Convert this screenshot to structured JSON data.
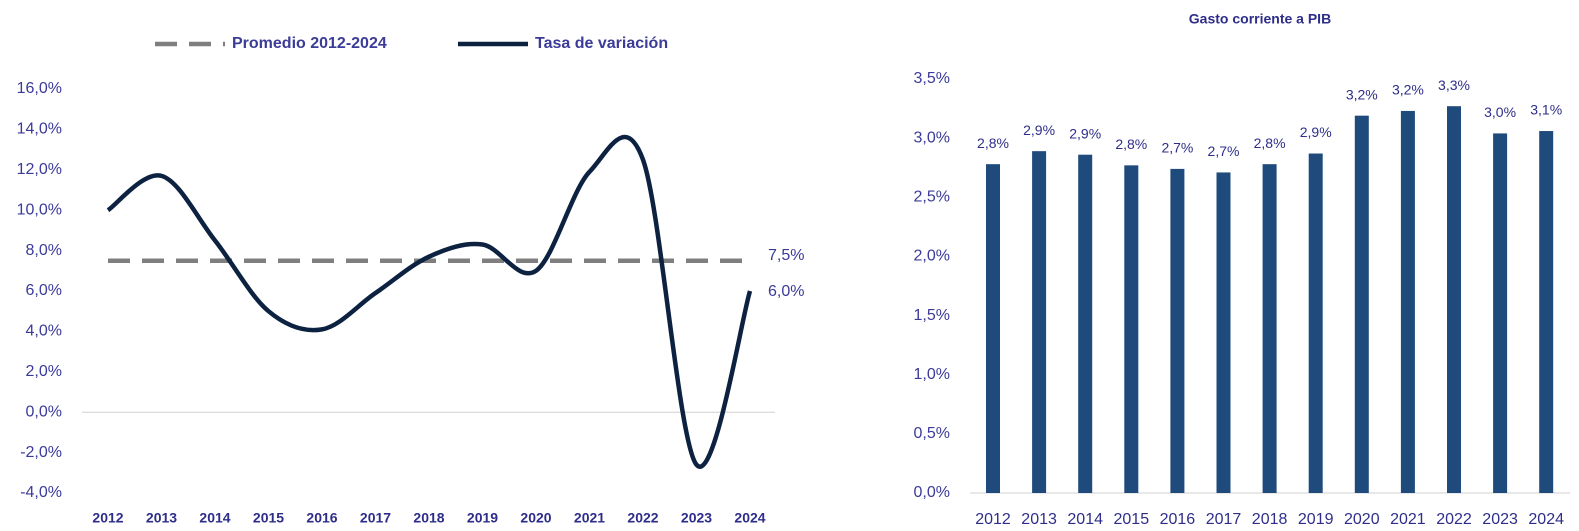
{
  "chart_data": [
    {
      "type": "line",
      "categories": [
        "2012",
        "2013",
        "2014",
        "2015",
        "2016",
        "2017",
        "2018",
        "2019",
        "2020",
        "2021",
        "2022",
        "2023",
        "2024"
      ],
      "series": [
        {
          "name": "Promedio 2012-2024",
          "color": "#7f7f7f",
          "dashed": true,
          "values": [
            7.5,
            7.5,
            7.5,
            7.5,
            7.5,
            7.5,
            7.5,
            7.5,
            7.5,
            7.5,
            7.5,
            7.5,
            7.5
          ],
          "value_labels": [
            null,
            null,
            null,
            null,
            null,
            null,
            null,
            null,
            null,
            null,
            null,
            null,
            "7,5%"
          ]
        },
        {
          "name": "Tasa de variación",
          "color": "#0d2240",
          "smooth": true,
          "values": [
            10.0,
            11.7,
            8.5,
            5.0,
            4.1,
            5.9,
            7.7,
            8.3,
            7.0,
            11.9,
            12.5,
            -2.6,
            6.0
          ],
          "value_labels": [
            null,
            null,
            null,
            null,
            null,
            null,
            null,
            null,
            null,
            null,
            null,
            null,
            "6,0%"
          ]
        }
      ],
      "ylim": [
        -4,
        16
      ],
      "yticks": [
        {
          "value": -4,
          "label": "-4,0%"
        },
        {
          "value": -2,
          "label": "-2,0%"
        },
        {
          "value": 0,
          "label": "0,0%"
        },
        {
          "value": 2,
          "label": "2,0%"
        },
        {
          "value": 4,
          "label": "4,0%"
        },
        {
          "value": 6,
          "label": "6,0%"
        },
        {
          "value": 8,
          "label": "8,0%"
        },
        {
          "value": 10,
          "label": "10,0%"
        },
        {
          "value": 12,
          "label": "12,0%"
        },
        {
          "value": 14,
          "label": "14,0%"
        },
        {
          "value": 16,
          "label": "16,0%"
        }
      ],
      "legend": "top"
    },
    {
      "type": "bar",
      "title": "Gasto corriente a PIB",
      "categories": [
        "2012",
        "2013",
        "2014",
        "2015",
        "2016",
        "2017",
        "2018",
        "2019",
        "2020",
        "2021",
        "2022",
        "2023",
        "2024"
      ],
      "values": [
        2.78,
        2.89,
        2.86,
        2.77,
        2.74,
        2.71,
        2.78,
        2.87,
        3.19,
        3.23,
        3.27,
        3.04,
        3.06
      ],
      "value_labels": [
        "2,8%",
        "2,9%",
        "2,9%",
        "2,8%",
        "2,7%",
        "2,7%",
        "2,8%",
        "2,9%",
        "3,2%",
        "3,2%",
        "3,3%",
        "3,0%",
        "3,1%"
      ],
      "color": "#1f4a7c",
      "ylim": [
        0,
        3.5
      ],
      "yticks": [
        {
          "value": 0,
          "label": "0,0%"
        },
        {
          "value": 0.5,
          "label": "0,5%"
        },
        {
          "value": 1,
          "label": "1,0%"
        },
        {
          "value": 1.5,
          "label": "1,5%"
        },
        {
          "value": 2,
          "label": "2,0%"
        },
        {
          "value": 2.5,
          "label": "2,5%"
        },
        {
          "value": 3,
          "label": "3,0%"
        },
        {
          "value": 3.5,
          "label": "3,5%"
        }
      ]
    }
  ]
}
